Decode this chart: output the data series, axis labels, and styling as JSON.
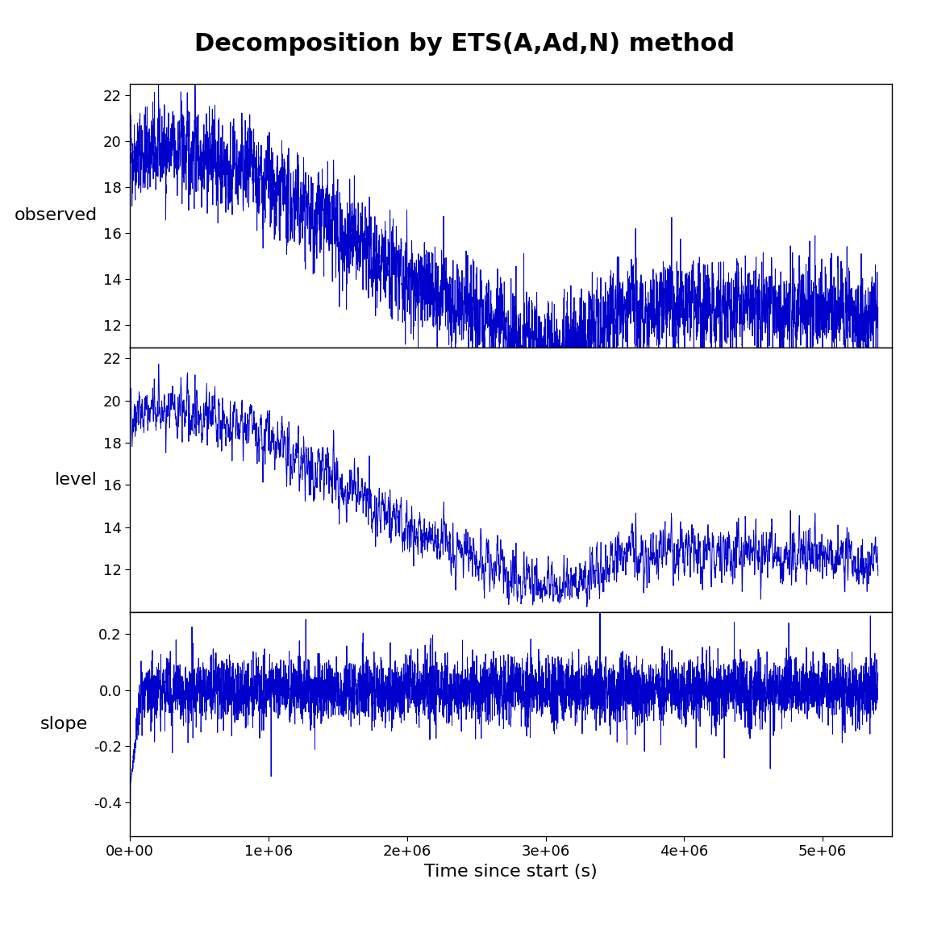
{
  "title": "Decomposition by ETS(A,Ad,N) method",
  "xlabel": "Time since start (s)",
  "ylabel_observed": "observed",
  "ylabel_level": "level",
  "ylabel_slope": "slope",
  "line_color": "#0000CC",
  "line_width": 0.7,
  "x_max": 5500000,
  "observed_ylim": [
    11.0,
    22.5
  ],
  "observed_yticks": [
    12,
    14,
    16,
    18,
    20,
    22
  ],
  "level_ylim": [
    10.0,
    22.5
  ],
  "level_yticks": [
    12,
    14,
    16,
    18,
    20,
    22
  ],
  "slope_ylim": [
    -0.52,
    0.28
  ],
  "slope_yticks": [
    -0.4,
    -0.2,
    0.0,
    0.2
  ],
  "background_color": "#ffffff",
  "n_points": 5500,
  "title_fontsize": 22,
  "label_fontsize": 16,
  "tick_fontsize": 13
}
